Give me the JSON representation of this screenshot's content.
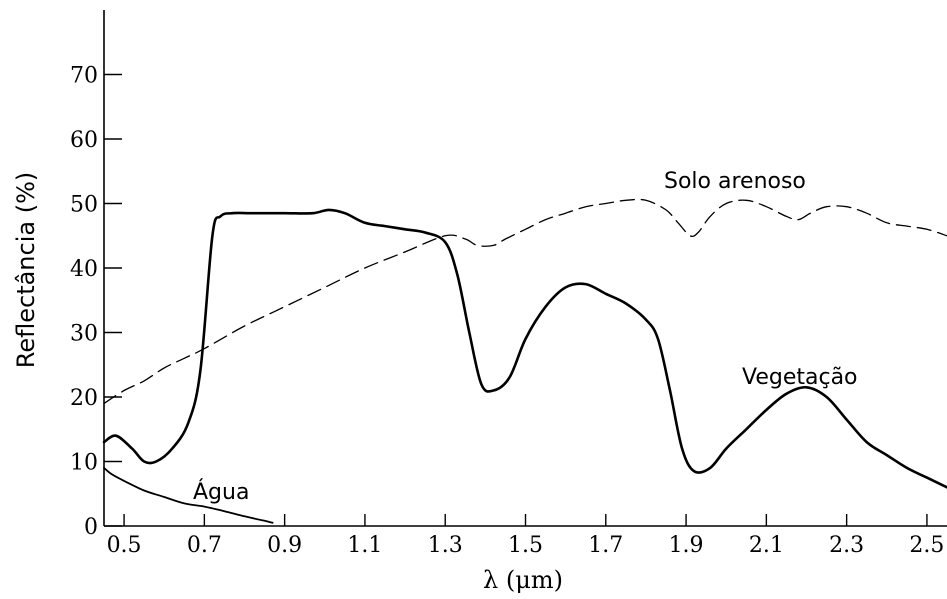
{
  "chart_data": {
    "type": "line",
    "xlabel": "λ (μm)",
    "ylabel": "Reflectância (%)",
    "xlim": [
      0.45,
      2.55
    ],
    "ylim": [
      0,
      80
    ],
    "x_ticks": [
      "0.5",
      "0.7",
      "0.9",
      "1.1",
      "1.3",
      "1.5",
      "1.7",
      "1.9",
      "2.1",
      "2.3",
      "2.5"
    ],
    "y_ticks": [
      "0",
      "10",
      "20",
      "30",
      "40",
      "50",
      "60",
      "70"
    ],
    "grid": false,
    "legend": "none",
    "series": [
      {
        "name": "Vegetação",
        "style": "solid",
        "x": [
          0.45,
          0.48,
          0.52,
          0.55,
          0.58,
          0.62,
          0.66,
          0.69,
          0.72,
          0.74,
          0.77,
          0.82,
          0.9,
          0.97,
          1.01,
          1.05,
          1.1,
          1.15,
          1.2,
          1.25,
          1.3,
          1.33,
          1.36,
          1.39,
          1.42,
          1.46,
          1.5,
          1.55,
          1.6,
          1.65,
          1.7,
          1.75,
          1.8,
          1.83,
          1.86,
          1.89,
          1.92,
          1.96,
          2.0,
          2.05,
          2.1,
          2.15,
          2.2,
          2.25,
          2.3,
          2.35,
          2.4,
          2.45,
          2.5,
          2.55
        ],
        "y": [
          13,
          14,
          12,
          10,
          10,
          12,
          16,
          24,
          45,
          48,
          48.5,
          48.5,
          48.5,
          48.5,
          49,
          48.5,
          47,
          46.5,
          46,
          45.5,
          44,
          39,
          30,
          22,
          21,
          23,
          29,
          34,
          37,
          37.5,
          36,
          34.5,
          32,
          29,
          21,
          12,
          8.5,
          9,
          12,
          15,
          18,
          20.5,
          21.5,
          20,
          16.5,
          13,
          11,
          9,
          7.5,
          6
        ]
      },
      {
        "name": "Solo arenoso",
        "style": "dashed",
        "x": [
          0.45,
          0.5,
          0.55,
          0.6,
          0.65,
          0.7,
          0.8,
          0.9,
          1.0,
          1.1,
          1.2,
          1.3,
          1.35,
          1.38,
          1.42,
          1.45,
          1.5,
          1.55,
          1.6,
          1.65,
          1.7,
          1.75,
          1.8,
          1.85,
          1.88,
          1.91,
          1.93,
          1.96,
          2.0,
          2.05,
          2.1,
          2.15,
          2.18,
          2.21,
          2.25,
          2.3,
          2.35,
          2.4,
          2.45,
          2.5,
          2.55
        ],
        "y": [
          19,
          21,
          22.5,
          24.5,
          26,
          27.5,
          31,
          34,
          37,
          40,
          42.5,
          45,
          44.5,
          43.5,
          43.5,
          44.5,
          46,
          47.5,
          48.5,
          49.5,
          50,
          50.5,
          50.5,
          49,
          47,
          45,
          45.5,
          48,
          50,
          50.5,
          49.5,
          48,
          47.5,
          48.5,
          49.5,
          49.5,
          48.5,
          47,
          46.5,
          46,
          45
        ]
      },
      {
        "name": "Água",
        "style": "solid",
        "x": [
          0.45,
          0.47,
          0.5,
          0.55,
          0.6,
          0.65,
          0.7,
          0.75,
          0.8,
          0.85,
          0.87
        ],
        "y": [
          9,
          8,
          7,
          5.5,
          4.5,
          3.5,
          3,
          2.3,
          1.5,
          0.8,
          0.5
        ]
      }
    ]
  }
}
